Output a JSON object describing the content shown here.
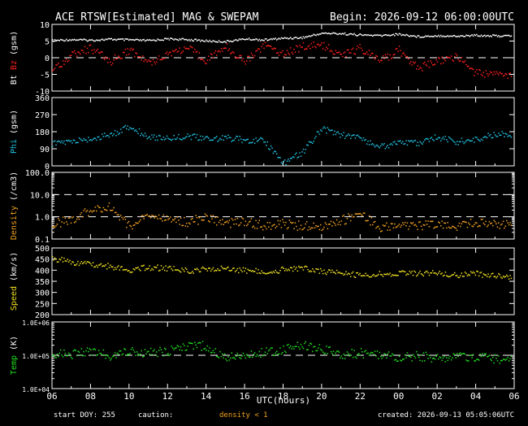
{
  "header": {
    "title": "ACE RTSW[Estimated] MAG & SWEPAM",
    "begin": "Begin: 2026-09-12 06:00:00UTC"
  },
  "footer": {
    "start_doy": "start DOY: 255",
    "caution_label": "caution:",
    "caution_value": "density < 1",
    "created": "created: 2026-09-13 05:05:06UTC"
  },
  "chart_data": {
    "type": "scatter",
    "x_axis": {
      "label": "UTC(hours)",
      "range_hours": [
        0,
        24
      ],
      "tick_hours": [
        0,
        2,
        4,
        6,
        8,
        10,
        12,
        14,
        16,
        18,
        20,
        22,
        24
      ],
      "tick_labels": [
        "06",
        "08",
        "10",
        "12",
        "14",
        "16",
        "18",
        "20",
        "22",
        "00",
        "02",
        "04",
        "06"
      ]
    },
    "panels": [
      {
        "id": "mag",
        "ylabel_parts": [
          {
            "text": "Bt",
            "color": "#ffffff"
          },
          {
            "text": " Bz",
            "color": "#ff2020"
          },
          {
            "text": " (gsm)",
            "color": "#ffffff"
          }
        ],
        "scale": "linear",
        "ylim": [
          -10,
          10
        ],
        "tick_values": [
          -10,
          -5,
          0,
          5,
          10
        ],
        "tick_labels": [
          "-10",
          "-5",
          "0",
          "5",
          "10"
        ],
        "dashed_lines": [
          0
        ],
        "series": [
          {
            "name": "Bt",
            "color": "#ffffff",
            "x": [
              0,
              1,
              2,
              3,
              4,
              5,
              6,
              7,
              8,
              9,
              10,
              11,
              12,
              13,
              14,
              15,
              16,
              17,
              18,
              19,
              20,
              21,
              22,
              23
            ],
            "y": [
              5.3,
              5.6,
              5.4,
              5.7,
              5.5,
              5.3,
              5.8,
              5.6,
              5.2,
              5.0,
              5.8,
              5.5,
              6.0,
              6.2,
              7.5,
              7.4,
              7.0,
              6.8,
              7.2,
              6.5,
              6.8,
              6.6,
              6.9,
              6.7
            ]
          },
          {
            "name": "Bz",
            "color": "#ff2020",
            "x": [
              0,
              1,
              2,
              3,
              4,
              5,
              6,
              7,
              8,
              9,
              10,
              11,
              12,
              13,
              14,
              15,
              16,
              17,
              18,
              19,
              20,
              21,
              22,
              23
            ],
            "y": [
              -3.5,
              1.0,
              3.0,
              -1.0,
              2.5,
              -1.5,
              1.5,
              3.0,
              -0.5,
              3.5,
              -1.0,
              4.0,
              1.5,
              3.5,
              4.0,
              1.0,
              3.0,
              -1.0,
              2.5,
              -3.0,
              -1.0,
              0.5,
              -4.5,
              -5.0
            ]
          }
        ]
      },
      {
        "id": "phi",
        "ylabel_parts": [
          {
            "text": "Phi",
            "color": "#20c0e0"
          },
          {
            "text": " (gsm)",
            "color": "#ffffff"
          }
        ],
        "scale": "linear",
        "ylim": [
          0,
          360
        ],
        "tick_values": [
          0,
          90,
          180,
          270,
          360
        ],
        "tick_labels": [
          "0",
          "90",
          "180",
          "270",
          "360"
        ],
        "dashed_lines": [],
        "series": [
          {
            "name": "Phi",
            "color": "#20c0e0",
            "x": [
              0,
              1,
              2,
              3,
              4,
              5,
              6,
              7,
              8,
              9,
              10,
              11,
              12,
              13,
              14,
              15,
              16,
              17,
              18,
              19,
              20,
              21,
              22,
              23
            ],
            "y": [
              120,
              130,
              145,
              165,
              210,
              155,
              150,
              160,
              145,
              150,
              140,
              135,
              18,
              75,
              200,
              165,
              150,
              100,
              130,
              120,
              155,
              130,
              140,
              170
            ]
          }
        ]
      },
      {
        "id": "density",
        "ylabel_parts": [
          {
            "text": "Density",
            "color": "#f0a020"
          },
          {
            "text": " (/cm3)",
            "color": "#ffffff"
          }
        ],
        "scale": "log",
        "ylim": [
          0.1,
          100
        ],
        "tick_values": [
          0.1,
          1,
          10,
          100
        ],
        "tick_labels": [
          "0.1",
          "1.0",
          "10.0",
          "100.0"
        ],
        "dashed_lines": [
          1,
          10
        ],
        "series": [
          {
            "name": "Density",
            "color": "#f0a020",
            "x": [
              0,
              1,
              2,
              3,
              4,
              5,
              6,
              7,
              8,
              9,
              10,
              11,
              12,
              13,
              14,
              15,
              16,
              17,
              18,
              19,
              20,
              21,
              22,
              23
            ],
            "y": [
              0.5,
              0.8,
              2.0,
              3.0,
              0.4,
              1.2,
              0.8,
              0.6,
              1.0,
              0.5,
              0.7,
              0.4,
              0.5,
              0.4,
              0.4,
              0.7,
              1.5,
              0.3,
              0.5,
              0.4,
              0.5,
              0.4,
              0.6,
              0.5
            ]
          }
        ]
      },
      {
        "id": "speed",
        "ylabel_parts": [
          {
            "text": "Speed",
            "color": "#f0e020"
          },
          {
            "text": " (km/s)",
            "color": "#ffffff"
          }
        ],
        "scale": "linear",
        "ylim": [
          200,
          500
        ],
        "tick_values": [
          200,
          250,
          300,
          350,
          400,
          450,
          500
        ],
        "tick_labels": [
          "200",
          "250",
          "300",
          "350",
          "400",
          "450",
          "500"
        ],
        "dashed_lines": [],
        "series": [
          {
            "name": "Speed",
            "color": "#f0e020",
            "x": [
              0,
              1,
              2,
              3,
              4,
              5,
              6,
              7,
              8,
              9,
              10,
              11,
              12,
              13,
              14,
              15,
              16,
              17,
              18,
              19,
              20,
              21,
              22,
              23
            ],
            "y": [
              455,
              440,
              430,
              420,
              405,
              415,
              410,
              400,
              405,
              410,
              400,
              395,
              405,
              410,
              400,
              385,
              380,
              385,
              390,
              385,
              390,
              380,
              385,
              375
            ]
          }
        ]
      },
      {
        "id": "temp",
        "ylabel_parts": [
          {
            "text": "Temp",
            "color": "#20e020"
          },
          {
            "text": " (K)",
            "color": "#ffffff"
          }
        ],
        "scale": "log",
        "ylim": [
          10000,
          1000000
        ],
        "tick_values": [
          10000,
          100000,
          1000000
        ],
        "tick_labels": [
          "1.0E+04",
          "1.0E+05",
          "1.0E+06"
        ],
        "dashed_lines": [
          100000
        ],
        "series": [
          {
            "name": "Temp",
            "color": "#20e020",
            "x": [
              0,
              1,
              2,
              3,
              4,
              5,
              6,
              7,
              8,
              9,
              10,
              11,
              12,
              13,
              14,
              15,
              16,
              17,
              18,
              19,
              20,
              21,
              22,
              23
            ],
            "y": [
              120000,
              110000,
              130000,
              100000,
              150000,
              120000,
              140000,
              180000,
              200000,
              90000,
              110000,
              130000,
              150000,
              200000,
              160000,
              110000,
              120000,
              100000,
              90000,
              100000,
              85000,
              95000,
              90000,
              80000
            ]
          }
        ]
      }
    ]
  }
}
